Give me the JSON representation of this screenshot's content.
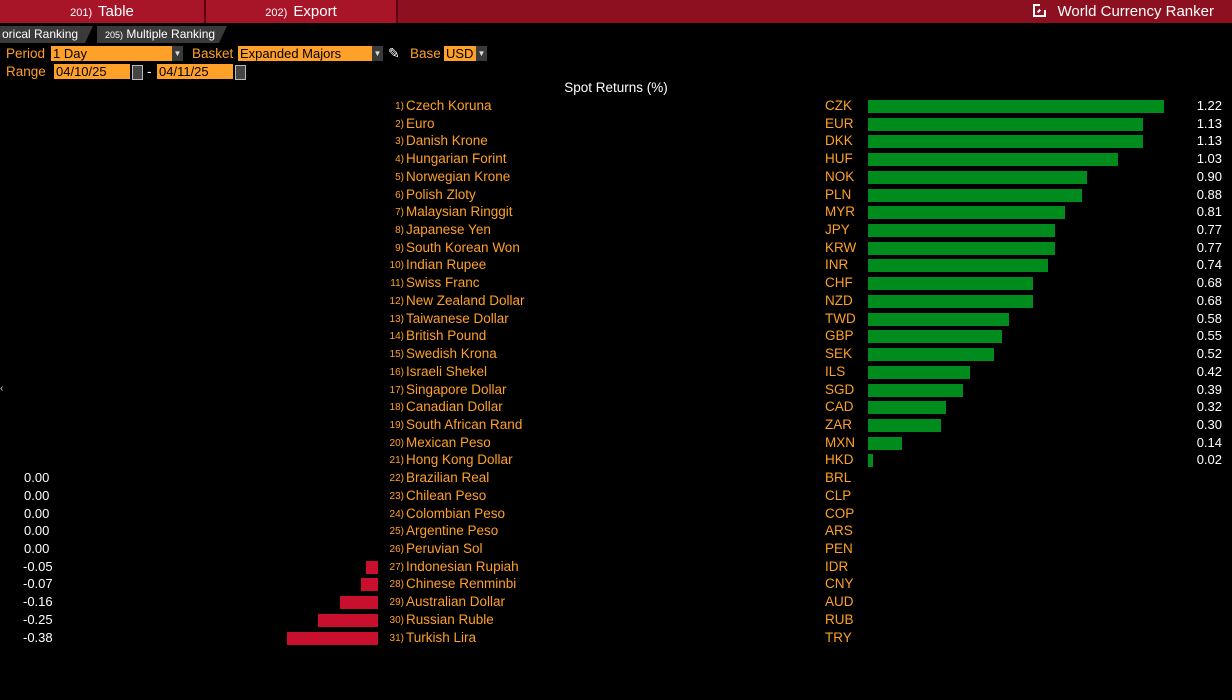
{
  "toolbar": {
    "btn1_num": "201)",
    "btn1_label": "Table",
    "btn2_num": "202)",
    "btn2_label": "Export",
    "title": "World Currency Ranker"
  },
  "tabs": [
    {
      "num": "",
      "label": "orical Ranking"
    },
    {
      "num": "205)",
      "label": "Multiple Ranking"
    }
  ],
  "controls": {
    "period_label": "Period",
    "period_value": "1 Day",
    "basket_label": "Basket",
    "basket_value": "Expanded Majors",
    "base_label": "Base",
    "base_value": "USD",
    "range_label": "Range",
    "range_start": "04/10/25",
    "range_sep": "-",
    "range_end": "04/11/25"
  },
  "chart_data": {
    "type": "bar",
    "title": "Spot Returns (%)",
    "colors": {
      "positive": "#008b1d",
      "negative": "#c8102e"
    },
    "rows": [
      {
        "rank": "1)",
        "name": "Czech Koruna",
        "code": "CZK",
        "value": 1.22
      },
      {
        "rank": "2)",
        "name": "Euro",
        "code": "EUR",
        "value": 1.13
      },
      {
        "rank": "3)",
        "name": "Danish Krone",
        "code": "DKK",
        "value": 1.13
      },
      {
        "rank": "4)",
        "name": "Hungarian Forint",
        "code": "HUF",
        "value": 1.03
      },
      {
        "rank": "5)",
        "name": "Norwegian Krone",
        "code": "NOK",
        "value": 0.9
      },
      {
        "rank": "6)",
        "name": "Polish Zloty",
        "code": "PLN",
        "value": 0.88
      },
      {
        "rank": "7)",
        "name": "Malaysian Ringgit",
        "code": "MYR",
        "value": 0.81
      },
      {
        "rank": "8)",
        "name": "Japanese Yen",
        "code": "JPY",
        "value": 0.77
      },
      {
        "rank": "9)",
        "name": "South Korean Won",
        "code": "KRW",
        "value": 0.77
      },
      {
        "rank": "10)",
        "name": "Indian Rupee",
        "code": "INR",
        "value": 0.74
      },
      {
        "rank": "11)",
        "name": "Swiss Franc",
        "code": "CHF",
        "value": 0.68
      },
      {
        "rank": "12)",
        "name": "New Zealand Dollar",
        "code": "NZD",
        "value": 0.68
      },
      {
        "rank": "13)",
        "name": "Taiwanese Dollar",
        "code": "TWD",
        "value": 0.58
      },
      {
        "rank": "14)",
        "name": "British Pound",
        "code": "GBP",
        "value": 0.55
      },
      {
        "rank": "15)",
        "name": "Swedish Krona",
        "code": "SEK",
        "value": 0.52
      },
      {
        "rank": "16)",
        "name": "Israeli Shekel",
        "code": "ILS",
        "value": 0.42
      },
      {
        "rank": "17)",
        "name": "Singapore Dollar",
        "code": "SGD",
        "value": 0.39
      },
      {
        "rank": "18)",
        "name": "Canadian Dollar",
        "code": "CAD",
        "value": 0.32
      },
      {
        "rank": "19)",
        "name": "South African Rand",
        "code": "ZAR",
        "value": 0.3
      },
      {
        "rank": "20)",
        "name": "Mexican Peso",
        "code": "MXN",
        "value": 0.14
      },
      {
        "rank": "21)",
        "name": "Hong Kong Dollar",
        "code": "HKD",
        "value": 0.02
      },
      {
        "rank": "22)",
        "name": "Brazilian Real",
        "code": "BRL",
        "value": 0.0
      },
      {
        "rank": "23)",
        "name": "Chilean Peso",
        "code": "CLP",
        "value": 0.0
      },
      {
        "rank": "24)",
        "name": "Colombian Peso",
        "code": "COP",
        "value": 0.0
      },
      {
        "rank": "25)",
        "name": "Argentine Peso",
        "code": "ARS",
        "value": 0.0
      },
      {
        "rank": "26)",
        "name": "Peruvian Sol",
        "code": "PEN",
        "value": 0.0
      },
      {
        "rank": "27)",
        "name": "Indonesian Rupiah",
        "code": "IDR",
        "value": -0.05
      },
      {
        "rank": "28)",
        "name": "Chinese Renminbi",
        "code": "CNY",
        "value": -0.07
      },
      {
        "rank": "29)",
        "name": "Australian Dollar",
        "code": "AUD",
        "value": -0.16
      },
      {
        "rank": "30)",
        "name": "Russian Ruble",
        "code": "RUB",
        "value": -0.25
      },
      {
        "rank": "31)",
        "name": "Turkish Lira",
        "code": "TRY",
        "value": -0.38
      }
    ]
  }
}
